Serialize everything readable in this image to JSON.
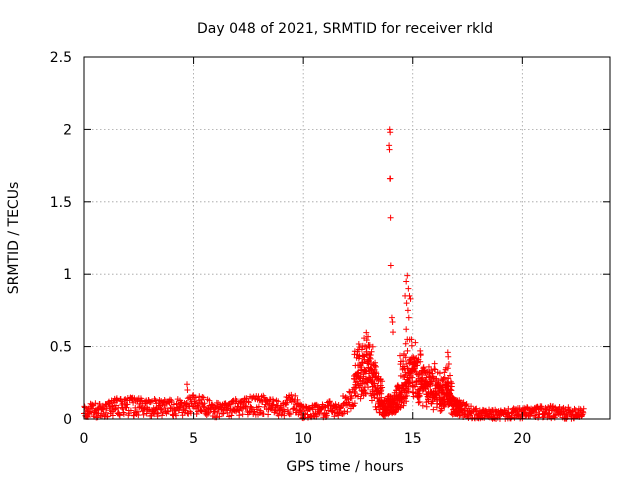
{
  "chart_data": {
    "type": "scatter",
    "title": "Day 048 of 2021, SRMTID for receiver rkld",
    "xlabel": "GPS time / hours",
    "ylabel": "SRMTID / TECUs",
    "xlim": [
      0,
      24
    ],
    "ylim": [
      0,
      2.5
    ],
    "x_ticks": [
      0,
      5,
      10,
      15,
      20
    ],
    "y_ticks": [
      0,
      0.5,
      1,
      1.5,
      2,
      2.5
    ],
    "x_tick_labels": [
      "0",
      "5",
      "10",
      "15",
      "20"
    ],
    "y_tick_labels": [
      "0",
      "0.5",
      "1",
      "1.5",
      "2",
      "2.5"
    ],
    "grid": true,
    "marker": "+",
    "color": "#ff0000",
    "series": [
      {
        "name": "SRMTID",
        "x_start": 0.0,
        "x_end": 22.8,
        "baseline_profile": [
          [
            0.0,
            0.06
          ],
          [
            1.0,
            0.06
          ],
          [
            1.5,
            0.09
          ],
          [
            3.0,
            0.08
          ],
          [
            4.5,
            0.08
          ],
          [
            5.0,
            0.11
          ],
          [
            6.0,
            0.06
          ],
          [
            7.0,
            0.08
          ],
          [
            8.0,
            0.1
          ],
          [
            9.0,
            0.07
          ],
          [
            9.5,
            0.11
          ],
          [
            10.0,
            0.05
          ],
          [
            11.0,
            0.06
          ],
          [
            12.0,
            0.1
          ],
          [
            12.5,
            0.22
          ],
          [
            13.0,
            0.3
          ],
          [
            13.5,
            0.06
          ],
          [
            14.0,
            0.1
          ],
          [
            15.0,
            0.25
          ],
          [
            15.5,
            0.2
          ],
          [
            16.0,
            0.15
          ],
          [
            17.0,
            0.08
          ],
          [
            18.0,
            0.03
          ],
          [
            19.0,
            0.03
          ],
          [
            20.0,
            0.04
          ],
          [
            21.0,
            0.05
          ],
          [
            22.0,
            0.04
          ],
          [
            22.8,
            0.05
          ]
        ],
        "peaks": [
          [
            4.7,
            0.24
          ],
          [
            4.72,
            0.2
          ],
          [
            12.9,
            0.49
          ],
          [
            13.0,
            0.45
          ],
          [
            13.2,
            0.38
          ],
          [
            13.95,
            2.0
          ],
          [
            13.97,
            1.98
          ],
          [
            13.92,
            1.89
          ],
          [
            13.94,
            1.86
          ],
          [
            13.96,
            1.66
          ],
          [
            13.98,
            1.66
          ],
          [
            13.99,
            1.39
          ],
          [
            14.0,
            1.06
          ],
          [
            14.05,
            0.7
          ],
          [
            14.08,
            0.67
          ],
          [
            14.1,
            0.6
          ],
          [
            14.75,
            0.99
          ],
          [
            14.7,
            0.95
          ],
          [
            14.8,
            0.9
          ],
          [
            14.65,
            0.85
          ],
          [
            14.85,
            0.85
          ],
          [
            14.9,
            0.83
          ],
          [
            14.72,
            0.8
          ],
          [
            14.78,
            0.75
          ],
          [
            14.82,
            0.7
          ],
          [
            14.7,
            0.62
          ],
          [
            14.75,
            0.55
          ],
          [
            14.68,
            0.52
          ],
          [
            14.6,
            0.45
          ],
          [
            14.9,
            0.4
          ],
          [
            15.0,
            0.35
          ],
          [
            16.6,
            0.46
          ],
          [
            16.62,
            0.43
          ],
          [
            16.65,
            0.38
          ],
          [
            16.7,
            0.3
          ]
        ]
      }
    ]
  }
}
